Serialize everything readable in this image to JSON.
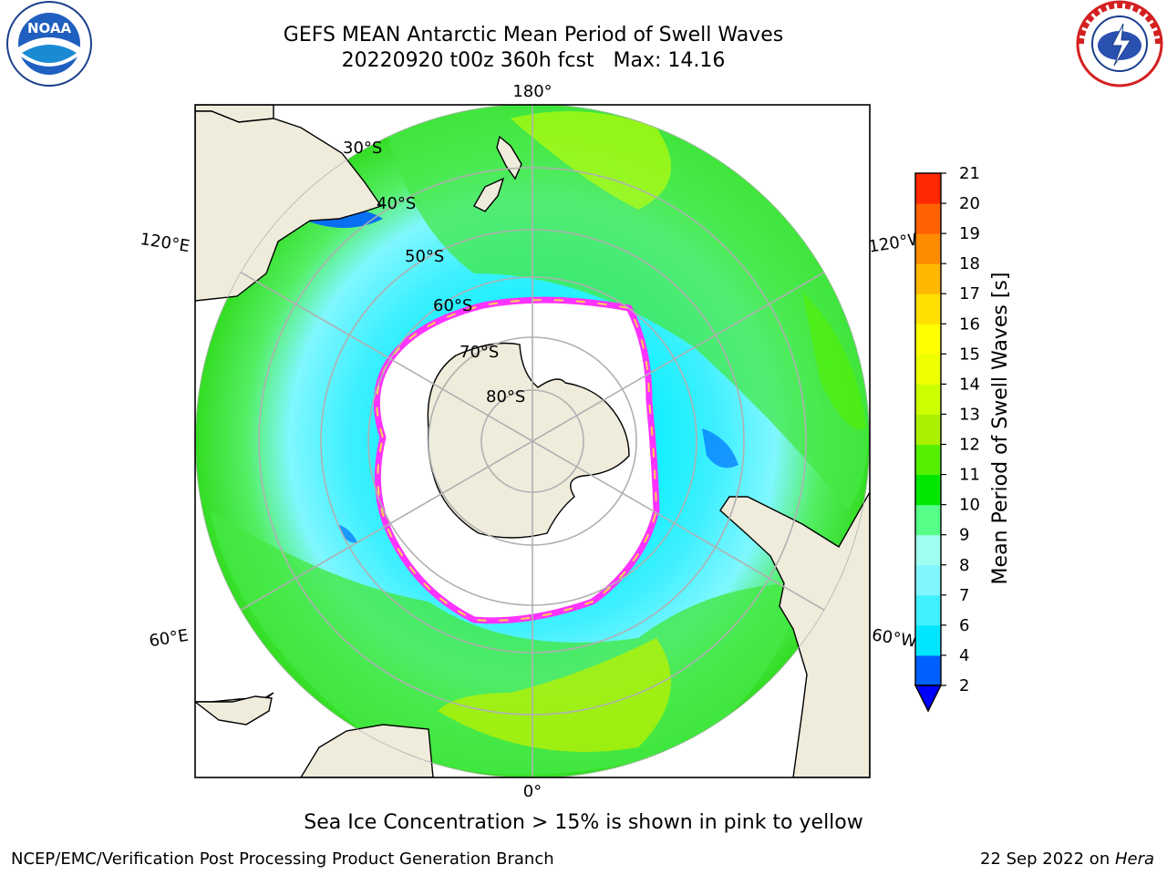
{
  "title": {
    "line1": "GEFS MEAN Antarctic Mean Period of Swell Waves",
    "line2": "20220920 t00z 360h fcst   Max: 14.16"
  },
  "logos": {
    "left": "noaa-logo",
    "right": "nws-logo"
  },
  "map": {
    "projection": "south-polar-stereographic",
    "meridian_labels": {
      "top": "180°",
      "bottom": "0°",
      "upper_left": "120°E",
      "upper_right": "120°W",
      "lower_left": "60°E",
      "lower_right": "60°W"
    },
    "parallel_labels": [
      "30°S",
      "40°S",
      "50°S",
      "60°S",
      "70°S",
      "80°S"
    ],
    "colors": {
      "land": "#efecdc",
      "sea_ice_interior": "#ffffff",
      "sea_ice_edge_low": "#ff33ff",
      "sea_ice_edge_high": "#ffd24d",
      "graticule": "#b0b0b0"
    }
  },
  "colorbar": {
    "label": "Mean Period of Swell Waves [s]",
    "ticks": [
      "2",
      "4",
      "6",
      "7",
      "8",
      "9",
      "10",
      "11",
      "12",
      "13",
      "14",
      "15",
      "16",
      "17",
      "18",
      "19",
      "20",
      "21"
    ],
    "colors": [
      "#0060ff",
      "#00e6ff",
      "#40f0ff",
      "#80f7ff",
      "#a0fff0",
      "#55ff88",
      "#00e600",
      "#55f000",
      "#aaf000",
      "#ccff00",
      "#eeff00",
      "#ffff00",
      "#ffe000",
      "#ffb800",
      "#ff8c00",
      "#ff6000",
      "#ff2800",
      "#ff0000"
    ],
    "under_color": "#0000ff",
    "extend": "min"
  },
  "footer": {
    "note": "Sea Ice Concentration > 15% is shown in pink to yellow",
    "credit": "NCEP/EMC/Verification Post Processing Product Generation Branch",
    "date": "22 Sep 2022 on ",
    "host": "Hera"
  }
}
